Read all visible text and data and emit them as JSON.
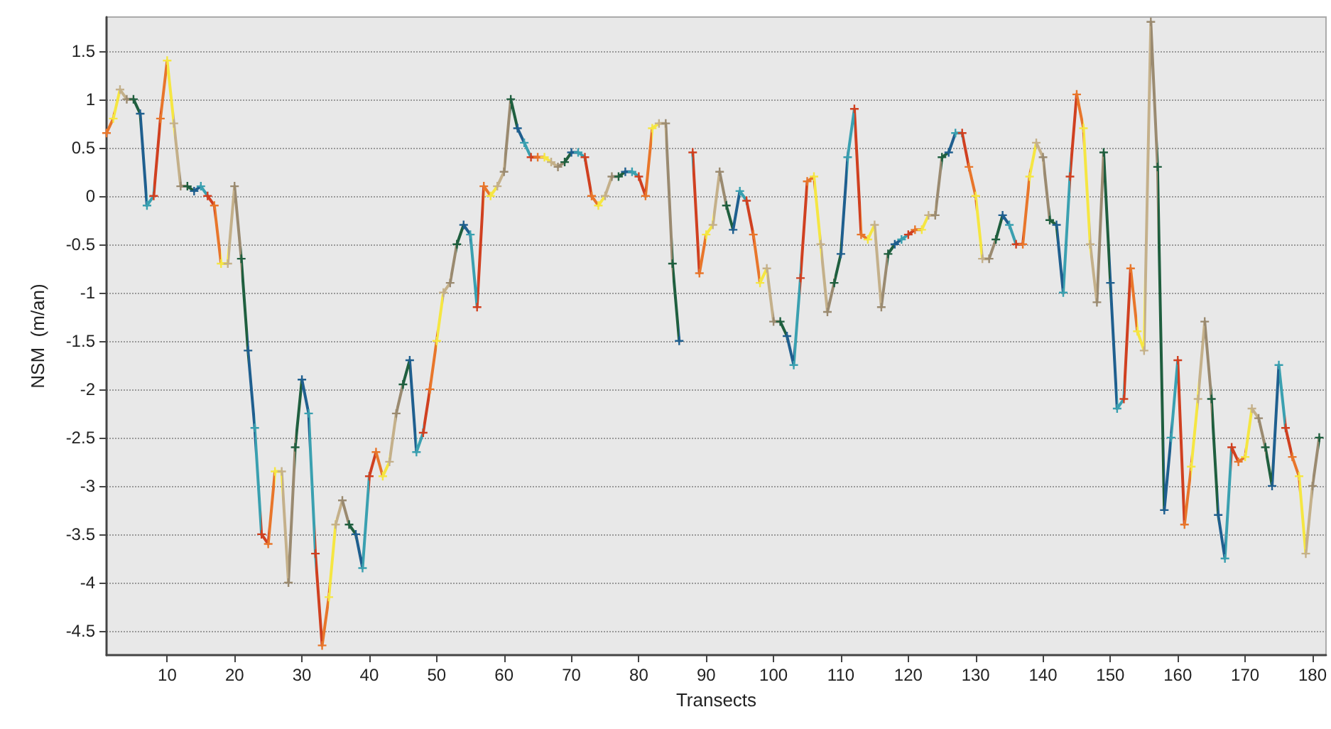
{
  "chart_data": {
    "type": "line",
    "xlabel": "Transects",
    "ylabel": "NSM  (m/an)",
    "xlim": [
      1,
      182
    ],
    "ylim": [
      -4.75,
      1.85
    ],
    "xticks": [
      10,
      20,
      30,
      40,
      50,
      60,
      70,
      80,
      90,
      100,
      110,
      120,
      130,
      140,
      150,
      160,
      170,
      180
    ],
    "yticks": [
      -4.5,
      -4,
      -3.5,
      -3,
      -2.5,
      -2,
      -1.5,
      -1,
      -0.5,
      0,
      0.5,
      1,
      1.5
    ],
    "grid": "y",
    "marker": "cross",
    "line_style": "solid",
    "x": [
      1,
      2,
      3,
      4,
      5,
      6,
      7,
      8,
      9,
      10,
      11,
      12,
      13,
      14,
      15,
      16,
      17,
      18,
      19,
      20,
      21,
      22,
      23,
      24,
      25,
      26,
      27,
      28,
      29,
      30,
      31,
      32,
      33,
      34,
      35,
      36,
      37,
      38,
      39,
      40,
      41,
      42,
      43,
      44,
      45,
      46,
      47,
      48,
      49,
      50,
      51,
      52,
      53,
      54,
      55,
      56,
      57,
      58,
      59,
      60,
      61,
      62,
      63,
      64,
      65,
      66,
      67,
      68,
      69,
      70,
      71,
      72,
      73,
      74,
      75,
      76,
      77,
      78,
      79,
      80,
      81,
      82,
      83,
      84,
      85,
      86,
      87,
      88,
      89,
      90,
      91,
      92,
      93,
      94,
      95,
      96,
      97,
      98,
      99,
      100,
      101,
      102,
      103,
      104,
      105,
      106,
      107,
      108,
      109,
      110,
      111,
      112,
      113,
      114,
      115,
      116,
      117,
      118,
      119,
      120,
      121,
      122,
      123,
      124,
      125,
      126,
      127,
      128,
      129,
      130,
      131,
      132,
      133,
      134,
      135,
      136,
      137,
      138,
      139,
      140,
      141,
      142,
      143,
      144,
      145,
      146,
      147,
      148,
      149,
      150,
      151,
      152,
      153,
      154,
      155,
      156,
      157,
      158,
      159,
      160,
      161,
      162,
      163,
      164,
      165,
      166,
      167,
      168,
      169,
      170,
      171,
      172,
      173,
      174,
      175,
      176,
      177,
      178,
      179,
      180,
      181
    ],
    "values": [
      0.65,
      0.8,
      1.1,
      1.0,
      1.0,
      0.85,
      -0.1,
      0.0,
      0.8,
      1.4,
      0.75,
      0.1,
      0.1,
      0.05,
      0.1,
      0.0,
      -0.1,
      -0.7,
      -0.7,
      0.1,
      -0.65,
      -1.6,
      -2.4,
      -3.5,
      -3.6,
      -2.85,
      -2.85,
      -4.0,
      -2.6,
      -1.9,
      -2.25,
      -3.7,
      -4.65,
      -4.15,
      -3.4,
      -3.15,
      -3.4,
      -3.5,
      -3.85,
      -2.9,
      -2.65,
      -2.9,
      -2.75,
      -2.25,
      -1.95,
      -1.7,
      -2.65,
      -2.45,
      -2.0,
      -1.5,
      -1.0,
      -0.9,
      -0.5,
      -0.3,
      -0.4,
      -1.15,
      0.1,
      0.0,
      0.1,
      0.25,
      1.0,
      0.7,
      0.55,
      0.4,
      0.4,
      0.4,
      0.35,
      0.3,
      0.35,
      0.45,
      0.45,
      0.4,
      0.0,
      -0.1,
      0.0,
      0.2,
      0.2,
      0.25,
      0.25,
      0.2,
      0.0,
      0.7,
      0.75,
      0.75,
      -0.7,
      -1.5,
      null,
      0.45,
      -0.8,
      -0.4,
      -0.3,
      0.25,
      -0.1,
      -0.35,
      0.05,
      -0.05,
      -0.4,
      -0.9,
      -0.75,
      -1.3,
      -1.3,
      -1.45,
      -1.75,
      -0.85,
      0.15,
      0.2,
      -0.5,
      -1.2,
      -0.9,
      -0.6,
      0.4,
      0.9,
      -0.4,
      -0.45,
      -0.3,
      -1.15,
      -0.6,
      -0.5,
      -0.45,
      -0.4,
      -0.35,
      -0.35,
      -0.2,
      -0.2,
      0.4,
      0.45,
      0.65,
      0.65,
      0.3,
      0.0,
      -0.65,
      -0.65,
      -0.45,
      -0.2,
      -0.3,
      -0.5,
      -0.5,
      0.2,
      0.55,
      0.4,
      -0.25,
      -0.3,
      -1.0,
      0.2,
      1.05,
      0.7,
      -0.5,
      -1.1,
      0.45,
      -0.9,
      -2.2,
      -2.1,
      -0.75,
      -1.4,
      -1.6,
      1.8,
      0.3,
      -3.25,
      -2.5,
      -1.7,
      -3.4,
      -2.8,
      -2.1,
      -1.3,
      -2.1,
      -3.3,
      -3.75,
      -2.6,
      -2.75,
      -2.7,
      -2.2,
      -2.3,
      -2.6,
      -3.0,
      -1.75,
      -2.4,
      -2.7,
      -2.9,
      -3.7,
      -3.0,
      -2.5
    ],
    "colors": [
      "#e8762b",
      "#f5e642",
      "#c4b08a",
      "#9a8a70",
      "#1f5f3f",
      "#1f5f8f",
      "#3aa0b0",
      "#d04020",
      "#e8762b",
      "#f5e642",
      "#c4b08a",
      "#9a8a70",
      "#1f5f3f",
      "#1f5f8f",
      "#3aa0b0",
      "#d04020",
      "#e8762b",
      "#f5e642",
      "#c4b08a",
      "#9a8a70",
      "#1f5f3f",
      "#1f5f8f",
      "#3aa0b0",
      "#d04020",
      "#e8762b",
      "#f5e642",
      "#c4b08a",
      "#9a8a70",
      "#1f5f3f",
      "#1f5f8f",
      "#3aa0b0",
      "#d04020",
      "#e8762b",
      "#f5e642",
      "#c4b08a",
      "#9a8a70",
      "#1f5f3f",
      "#1f5f8f",
      "#3aa0b0",
      "#d04020",
      "#e8762b",
      "#f5e642",
      "#c4b08a",
      "#9a8a70",
      "#1f5f3f",
      "#1f5f8f",
      "#3aa0b0",
      "#d04020",
      "#e8762b",
      "#f5e642",
      "#c4b08a",
      "#9a8a70",
      "#1f5f3f",
      "#1f5f8f",
      "#3aa0b0",
      "#d04020",
      "#e8762b",
      "#f5e642",
      "#c4b08a",
      "#9a8a70",
      "#1f5f3f",
      "#1f5f8f",
      "#3aa0b0",
      "#d04020",
      "#e8762b",
      "#f5e642",
      "#c4b08a",
      "#9a8a70",
      "#1f5f3f",
      "#1f5f8f",
      "#3aa0b0",
      "#d04020",
      "#e8762b",
      "#f5e642",
      "#c4b08a",
      "#9a8a70",
      "#1f5f3f",
      "#1f5f8f",
      "#3aa0b0",
      "#d04020",
      "#e8762b",
      "#f5e642",
      "#c4b08a",
      "#9a8a70",
      "#1f5f3f",
      "#1f5f8f",
      "#3aa0b0",
      "#d04020",
      "#e8762b",
      "#f5e642",
      "#c4b08a",
      "#9a8a70",
      "#1f5f3f",
      "#1f5f8f",
      "#3aa0b0",
      "#d04020",
      "#e8762b",
      "#f5e642",
      "#c4b08a",
      "#9a8a70",
      "#1f5f3f",
      "#1f5f8f",
      "#3aa0b0",
      "#d04020",
      "#e8762b",
      "#f5e642",
      "#c4b08a",
      "#9a8a70",
      "#1f5f3f",
      "#1f5f8f",
      "#3aa0b0",
      "#d04020",
      "#e8762b",
      "#f5e642",
      "#c4b08a",
      "#9a8a70",
      "#1f5f3f",
      "#1f5f8f",
      "#3aa0b0",
      "#d04020",
      "#e8762b",
      "#f5e642",
      "#c4b08a",
      "#9a8a70",
      "#1f5f3f",
      "#1f5f8f",
      "#3aa0b0",
      "#d04020",
      "#e8762b",
      "#f5e642",
      "#c4b08a",
      "#9a8a70",
      "#1f5f3f",
      "#1f5f8f",
      "#3aa0b0",
      "#d04020",
      "#e8762b",
      "#f5e642",
      "#c4b08a",
      "#9a8a70",
      "#1f5f3f",
      "#1f5f8f",
      "#3aa0b0",
      "#d04020",
      "#e8762b",
      "#f5e642",
      "#c4b08a",
      "#9a8a70",
      "#1f5f3f",
      "#1f5f8f",
      "#3aa0b0",
      "#d04020",
      "#e8762b",
      "#f5e642",
      "#c4b08a",
      "#9a8a70",
      "#1f5f3f",
      "#1f5f8f",
      "#3aa0b0",
      "#d04020",
      "#e8762b",
      "#f5e642",
      "#c4b08a",
      "#9a8a70",
      "#1f5f3f",
      "#1f5f8f",
      "#3aa0b0",
      "#d04020",
      "#e8762b",
      "#f5e642",
      "#c4b08a",
      "#9a8a70",
      "#1f5f3f",
      "#1f5f8f",
      "#3aa0b0",
      "#d04020",
      "#e8762b",
      "#f5e642",
      "#c4b08a",
      "#9a8a70",
      "#1f5f3f"
    ]
  }
}
